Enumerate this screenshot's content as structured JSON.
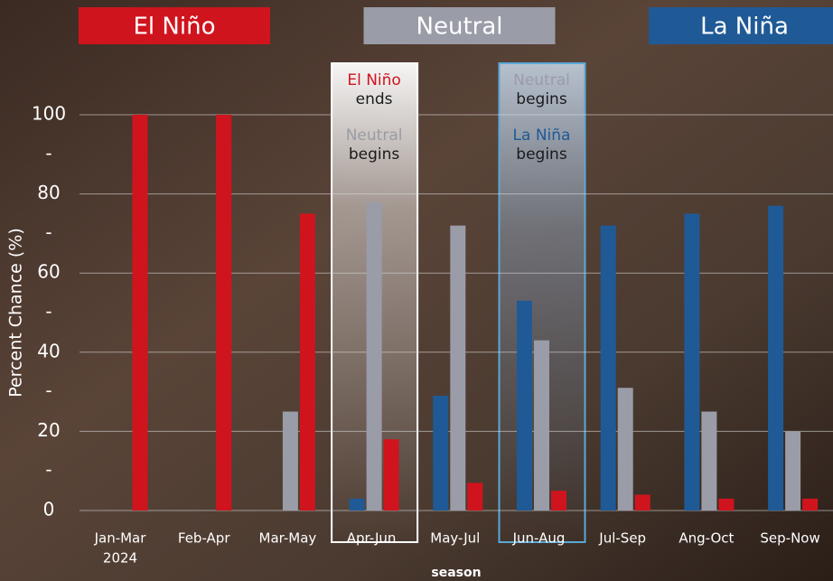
{
  "chart_data": {
    "type": "bar",
    "y_label": "Percent Chance (%)",
    "x_label": "season",
    "categories": [
      "Jan-Mar",
      "Feb-Apr",
      "Mar-May",
      "Apr-Jun",
      "May-Jul",
      "Jun-Aug",
      "Jul-Sep",
      "Ang-Oct",
      "Sep-Now"
    ],
    "first_category_year": "2024",
    "series": [
      {
        "name": "La Niña",
        "color": "#1f5a96",
        "values": [
          0,
          0,
          0,
          3,
          29,
          53,
          72,
          75,
          77
        ]
      },
      {
        "name": "Neutral",
        "color": "#9a9ca8",
        "values": [
          0,
          0,
          25,
          78,
          72,
          43,
          31,
          25,
          20
        ]
      },
      {
        "name": "El Niño",
        "color": "#d0141e",
        "values": [
          100,
          100,
          75,
          18,
          7,
          5,
          4,
          3,
          3
        ]
      }
    ],
    "ylim": [
      0,
      100
    ],
    "yticks": [
      0,
      {
        "value": 10,
        "label": "-"
      },
      20,
      {
        "value": 30,
        "label": "-"
      },
      40,
      {
        "value": 50,
        "label": "-"
      },
      60,
      {
        "value": 70,
        "label": "-"
      },
      80,
      {
        "value": 90,
        "label": "-"
      },
      100
    ],
    "grid": true,
    "highlights": [
      {
        "category": "Apr-Jun",
        "style": "white",
        "lines": [
          [
            "El Niño",
            "ends"
          ],
          [
            "Neutral",
            "begins"
          ]
        ]
      },
      {
        "category": "Jun-Aug",
        "style": "blue",
        "lines": [
          [
            "Neutral",
            "begins"
          ],
          [
            "La Niña",
            "begins"
          ]
        ]
      }
    ]
  }
}
